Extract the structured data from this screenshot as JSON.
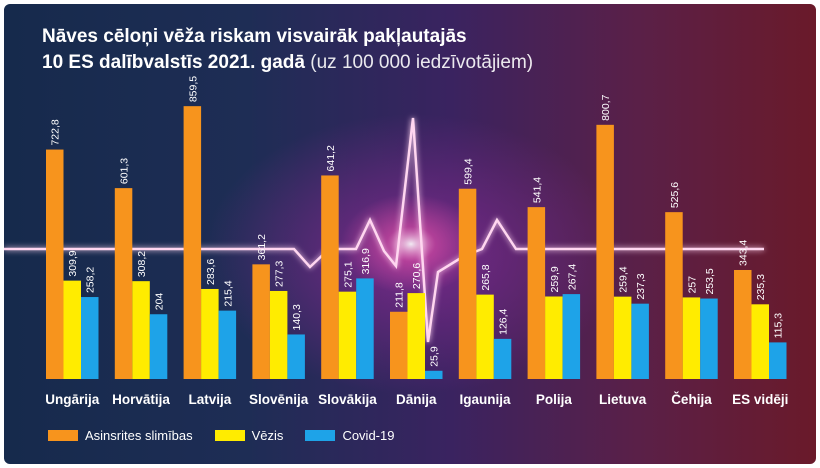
{
  "title_line1": "Nāves cēloņi vēža riskam visvairāk pakļautajās",
  "title_line2_bold": "10 ES dalībvalstīs 2021. gadā",
  "title_line2_note": "(uz 100 000 iedzīvotājiem)",
  "colors": {
    "cardio": "#f7941d",
    "cancer": "#ffec00",
    "covid": "#1ea3e8"
  },
  "chart_data": {
    "type": "bar",
    "categories": [
      "Ungārija",
      "Horvātija",
      "Latvija",
      "Slovēnija",
      "Slovākija",
      "Dānija",
      "Igaunija",
      "Polija",
      "Lietuva",
      "Čehija",
      "ES vidēji"
    ],
    "series": [
      {
        "name": "Asinsrites slimības",
        "values": [
          722.8,
          601.3,
          859.5,
          361.2,
          641.2,
          211.8,
          599.4,
          541.4,
          800.7,
          525.6,
          343.4
        ],
        "labels": [
          "722,8",
          "601,3",
          "859,5",
          "361,2",
          "641,2",
          "211,8",
          "599,4",
          "541,4",
          "800,7",
          "525,6",
          "343,4"
        ]
      },
      {
        "name": "Vēzis",
        "values": [
          309.9,
          308.2,
          283.6,
          277.3,
          275.1,
          270.6,
          265.8,
          259.9,
          259.4,
          257,
          235.3
        ],
        "labels": [
          "309,9",
          "308,2",
          "283,6",
          "277,3",
          "275,1",
          "270,6",
          "265,8",
          "259,9",
          "259,4",
          "257",
          "235,3"
        ]
      },
      {
        "name": "Covid-19",
        "values": [
          258.2,
          204,
          215.4,
          140.3,
          316.9,
          25.9,
          126.4,
          267.4,
          237.3,
          253.5,
          115.3
        ],
        "labels": [
          "258,2",
          "204",
          "215,4",
          "140,3",
          "316,9",
          "25,9",
          "126,4",
          "267,4",
          "237,3",
          "253,5",
          "115,3"
        ]
      }
    ],
    "ylim": [
      0,
      860
    ],
    "legend_position": "bottom-left",
    "grid": false
  }
}
